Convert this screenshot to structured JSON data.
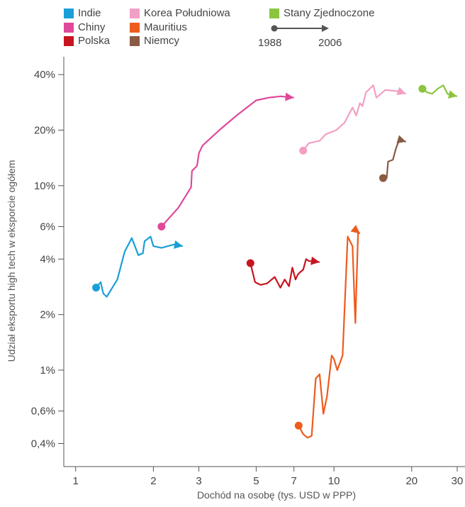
{
  "chart_data": {
    "type": "line",
    "xlabel": "Dochód na osobę (tys. USD w PPP)",
    "ylabel": "Udział eksportu high tech w eksporcie ogółem",
    "x_scale": "log",
    "y_scale": "log",
    "xlim": [
      0.9,
      30
    ],
    "ylim": [
      0.3,
      50
    ],
    "x_ticks": [
      1,
      2,
      3,
      5,
      7,
      10,
      20,
      30
    ],
    "x_tick_labels": [
      "1",
      "2",
      "3",
      "5",
      "7",
      "10",
      "20",
      "30"
    ],
    "y_ticks": [
      0.4,
      0.6,
      1,
      2,
      4,
      6,
      10,
      20,
      40
    ],
    "y_tick_labels": [
      "0,4%",
      "0,6%",
      "1%",
      "2%",
      "4%",
      "6%",
      "10%",
      "20%",
      "40%"
    ],
    "time_legend": {
      "start": "1988",
      "end": "2006"
    },
    "series": [
      {
        "name": "Indie",
        "color": "#1a9fd7",
        "x": [
          1.2,
          1.25,
          1.28,
          1.32,
          1.45,
          1.55,
          1.65,
          1.75,
          1.82,
          1.85,
          1.95,
          2.0,
          2.15,
          2.4,
          2.6
        ],
        "y": [
          2.8,
          3.0,
          2.6,
          2.5,
          3.1,
          4.4,
          5.2,
          4.2,
          4.3,
          5.0,
          5.3,
          4.7,
          4.6,
          4.8,
          4.7
        ]
      },
      {
        "name": "Chiny",
        "color": "#e0489a",
        "x": [
          2.15,
          2.5,
          2.8,
          2.82,
          2.95,
          3.0,
          3.1,
          3.6,
          4.2,
          5.0,
          5.6,
          6.2,
          7.0
        ],
        "y": [
          6.0,
          7.6,
          9.8,
          12.0,
          12.8,
          15.0,
          16.5,
          20.0,
          24.0,
          29.0,
          30.0,
          30.5,
          30.0
        ]
      },
      {
        "name": "Polska",
        "color": "#c8141e",
        "x": [
          4.75,
          4.95,
          5.2,
          5.5,
          5.9,
          6.2,
          6.45,
          6.7,
          6.9,
          7.1,
          7.25,
          7.4,
          7.6,
          7.8,
          8.0,
          8.3,
          8.8
        ],
        "y": [
          3.8,
          3.0,
          2.9,
          2.95,
          3.2,
          2.8,
          3.1,
          2.85,
          3.6,
          3.1,
          3.3,
          3.4,
          3.5,
          4.0,
          3.9,
          3.9,
          3.85
        ]
      },
      {
        "name": "Korea Południowa",
        "color": "#f29fc5",
        "x": [
          7.6,
          8.0,
          8.8,
          9.3,
          10.2,
          11.0,
          11.8,
          12.2,
          12.6,
          12.9,
          13.3,
          14.2,
          14.6,
          15.8,
          17.8,
          19.0
        ],
        "y": [
          15.5,
          17.0,
          17.5,
          19.0,
          20.0,
          22.0,
          26.5,
          24.0,
          28.0,
          27.0,
          32.0,
          35.0,
          30.0,
          33.0,
          32.5,
          31.5
        ]
      },
      {
        "name": "Mauritius",
        "color": "#ee5b1e",
        "x": [
          7.3,
          7.6,
          7.9,
          8.2,
          8.5,
          8.8,
          9.1,
          9.4,
          9.8,
          10.0,
          10.3,
          10.8,
          11.3,
          11.8,
          12.1,
          12.4,
          12.6
        ],
        "y": [
          0.5,
          0.45,
          0.43,
          0.44,
          0.9,
          0.95,
          0.58,
          0.72,
          1.2,
          1.15,
          1.0,
          1.2,
          5.3,
          4.7,
          1.8,
          5.6,
          5.5
        ]
      },
      {
        "name": "Niemcy",
        "color": "#8a5a44",
        "x": [
          15.5,
          16.0,
          16.2,
          16.9,
          17.4,
          18.0,
          18.5,
          19.0
        ],
        "y": [
          11.0,
          11.0,
          13.5,
          13.8,
          16.0,
          18.0,
          17.5,
          17.3
        ]
      },
      {
        "name": "Stany Zjednoczone",
        "color": "#8bc53f",
        "x": [
          22.0,
          23.0,
          24.0,
          25.2,
          26.5,
          27.5,
          28.5,
          30.0
        ],
        "y": [
          33.5,
          32.0,
          31.5,
          33.5,
          35.0,
          31.5,
          31.0,
          30.5
        ]
      }
    ]
  },
  "legend": [
    {
      "label": "Indie",
      "color": "#1a9fd7"
    },
    {
      "label": "Chiny",
      "color": "#e0489a"
    },
    {
      "label": "Polska",
      "color": "#c8141e"
    },
    {
      "label": "Korea Południowa",
      "color": "#f29fc5"
    },
    {
      "label": "Mauritius",
      "color": "#ee5b1e"
    },
    {
      "label": "Niemcy",
      "color": "#8a5a44"
    },
    {
      "label": "Stany Zjednoczone",
      "color": "#8bc53f"
    }
  ]
}
